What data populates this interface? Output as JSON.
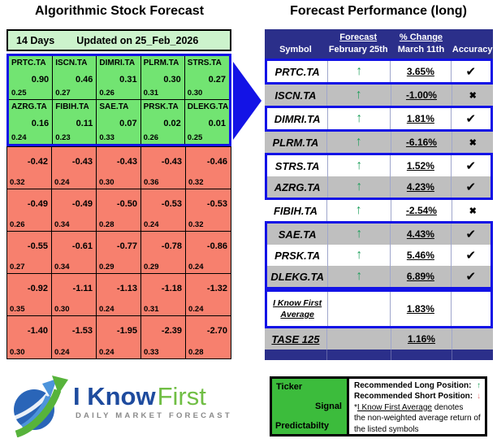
{
  "colors": {
    "navy_header": "#2B2F8A",
    "highlight_border_blue": "#1313E6",
    "green_cell": "#72E472",
    "pale_green_header": "#CCF3CC",
    "red_cell": "#F7806E",
    "gray_row": "#BFBFBF",
    "up_arrow_green": "#1FA05C",
    "down_arrow_red": "#E87C7C",
    "legend_green": "#3CBC3C",
    "logo_blue": "#1E4B9E",
    "logo_green": "#70BE44"
  },
  "left_panel": {
    "title": "Algorithmic Stock Forecast",
    "period": "14 Days",
    "updated": "Updated on 25_Feb_2026",
    "rows": [
      [
        {
          "ticker": "PRTC.TA",
          "signal": "0.90",
          "predictability": "0.25"
        },
        {
          "ticker": "ISCN.TA",
          "signal": "0.46",
          "predictability": "0.27"
        },
        {
          "ticker": "DIMRI.TA",
          "signal": "0.31",
          "predictability": "0.26"
        },
        {
          "ticker": "PLRM.TA",
          "signal": "0.30",
          "predictability": "0.31"
        },
        {
          "ticker": "STRS.TA",
          "signal": "0.27",
          "predictability": "0.30"
        }
      ],
      [
        {
          "ticker": "AZRG.TA",
          "signal": "0.16",
          "predictability": "0.24"
        },
        {
          "ticker": "FIBIH.TA",
          "signal": "0.11",
          "predictability": "0.23"
        },
        {
          "ticker": "SAE.TA",
          "signal": "0.07",
          "predictability": "0.33"
        },
        {
          "ticker": "PRSK.TA",
          "signal": "0.02",
          "predictability": "0.26"
        },
        {
          "ticker": "DLEKG.TA",
          "signal": "0.01",
          "predictability": "0.25"
        }
      ],
      [
        {
          "signal": "-0.42",
          "predictability": "0.32"
        },
        {
          "signal": "-0.43",
          "predictability": "0.24"
        },
        {
          "signal": "-0.43",
          "predictability": "0.30"
        },
        {
          "signal": "-0.43",
          "predictability": "0.36"
        },
        {
          "signal": "-0.46",
          "predictability": "0.32"
        }
      ],
      [
        {
          "signal": "-0.49",
          "predictability": "0.26"
        },
        {
          "signal": "-0.49",
          "predictability": "0.34"
        },
        {
          "signal": "-0.50",
          "predictability": "0.28"
        },
        {
          "signal": "-0.53",
          "predictability": "0.24"
        },
        {
          "signal": "-0.53",
          "predictability": "0.32"
        }
      ],
      [
        {
          "signal": "-0.55",
          "predictability": "0.27"
        },
        {
          "signal": "-0.61",
          "predictability": "0.34"
        },
        {
          "signal": "-0.77",
          "predictability": "0.29"
        },
        {
          "signal": "-0.78",
          "predictability": "0.29"
        },
        {
          "signal": "-0.86",
          "predictability": "0.24"
        }
      ],
      [
        {
          "signal": "-0.92",
          "predictability": "0.35"
        },
        {
          "signal": "-1.11",
          "predictability": "0.30"
        },
        {
          "signal": "-1.13",
          "predictability": "0.24"
        },
        {
          "signal": "-1.18",
          "predictability": "0.31"
        },
        {
          "signal": "-1.32",
          "predictability": "0.24"
        }
      ],
      [
        {
          "signal": "-1.40",
          "predictability": "0.30"
        },
        {
          "signal": "-1.53",
          "predictability": "0.24"
        },
        {
          "signal": "-1.95",
          "predictability": "0.24"
        },
        {
          "signal": "-2.39",
          "predictability": "0.33"
        },
        {
          "signal": "-2.70",
          "predictability": "0.28"
        }
      ]
    ]
  },
  "right_panel": {
    "title": "Forecast Performance (long)",
    "header": {
      "symbol": "Symbol",
      "forecast": "Forecast",
      "forecast_date": "February 25th",
      "change": "% Change",
      "change_date": "March 11th",
      "accuracy": "Accuracy"
    },
    "rows": [
      {
        "symbol": "PRTC.TA",
        "arrow": "↑",
        "change": "3.65%",
        "mark": "✔",
        "shade": "white",
        "type": "stock",
        "box_group": 1
      },
      {
        "symbol": "ISCN.TA",
        "arrow": "↑",
        "change": "-1.00%",
        "mark": "✖",
        "shade": "gray",
        "type": "stock",
        "box_group": 0
      },
      {
        "symbol": "DIMRI.TA",
        "arrow": "↑",
        "change": "1.81%",
        "mark": "✔",
        "shade": "white",
        "type": "stock",
        "box_group": 2
      },
      {
        "symbol": "PLRM.TA",
        "arrow": "↑",
        "change": "-6.16%",
        "mark": "✖",
        "shade": "gray",
        "type": "stock",
        "box_group": 0
      },
      {
        "symbol": "STRS.TA",
        "arrow": "↑",
        "change": "1.52%",
        "mark": "✔",
        "shade": "white",
        "type": "stock",
        "box_group": 3
      },
      {
        "symbol": "AZRG.TA",
        "arrow": "↑",
        "change": "4.23%",
        "mark": "✔",
        "shade": "gray",
        "type": "stock",
        "box_group": 3
      },
      {
        "symbol": "FIBIH.TA",
        "arrow": "↑",
        "change": "-2.54%",
        "mark": "✖",
        "shade": "white",
        "type": "stock",
        "box_group": 0
      },
      {
        "symbol": "SAE.TA",
        "arrow": "↑",
        "change": "4.43%",
        "mark": "✔",
        "shade": "gray",
        "type": "stock",
        "box_group": 4
      },
      {
        "symbol": "PRSK.TA",
        "arrow": "↑",
        "change": "5.46%",
        "mark": "✔",
        "shade": "white",
        "type": "stock",
        "box_group": 4
      },
      {
        "symbol": "DLEKG.TA",
        "arrow": "↑",
        "change": "6.89%",
        "mark": "✔",
        "shade": "gray",
        "type": "stock",
        "box_group": 4
      },
      {
        "symbol": "I Know First",
        "symbol_line2": "Average",
        "arrow": "",
        "change": "1.83%",
        "mark": "",
        "shade": "white",
        "type": "average",
        "box_group": 5
      },
      {
        "symbol": "TASE 125",
        "arrow": "",
        "change": "1.16%",
        "mark": "",
        "shade": "gray",
        "type": "index",
        "box_group": 0
      }
    ]
  },
  "legend": {
    "ticker_label": "Ticker",
    "signal_label": "Signal",
    "predictability_label": "Predictabilty",
    "long_label": "Recommended Long Position:",
    "long_arrow": "↑",
    "short_label": "Recommended Short Position:",
    "short_arrow": "↓",
    "note_star": "*",
    "note_underlined": "I Know First Average",
    "note_rest": " denotes",
    "note_line2": "the non-weighted average return of",
    "note_line3": "the listed symbols"
  },
  "logo": {
    "name_part1": "I Know",
    "name_part2": "First",
    "subtitle": "DAILY MARKET FORECAST"
  },
  "chart_data": [
    {
      "type": "table",
      "title": "Algorithmic Stock Forecast",
      "subtitle": "14 Days — Updated on 25_Feb_2026",
      "columns": [
        "ticker",
        "signal",
        "predictability"
      ],
      "rows": [
        [
          "PRTC.TA",
          0.9,
          0.25
        ],
        [
          "ISCN.TA",
          0.46,
          0.27
        ],
        [
          "DIMRI.TA",
          0.31,
          0.26
        ],
        [
          "PLRM.TA",
          0.3,
          0.31
        ],
        [
          "STRS.TA",
          0.27,
          0.3
        ],
        [
          "AZRG.TA",
          0.16,
          0.24
        ],
        [
          "FIBIH.TA",
          0.11,
          0.23
        ],
        [
          "SAE.TA",
          0.07,
          0.33
        ],
        [
          "PRSK.TA",
          0.02,
          0.26
        ],
        [
          "DLEKG.TA",
          0.01,
          0.25
        ],
        [
          null,
          -0.42,
          0.32
        ],
        [
          null,
          -0.43,
          0.24
        ],
        [
          null,
          -0.43,
          0.3
        ],
        [
          null,
          -0.43,
          0.36
        ],
        [
          null,
          -0.46,
          0.32
        ],
        [
          null,
          -0.49,
          0.26
        ],
        [
          null,
          -0.49,
          0.34
        ],
        [
          null,
          -0.5,
          0.28
        ],
        [
          null,
          -0.53,
          0.24
        ],
        [
          null,
          -0.53,
          0.32
        ],
        [
          null,
          -0.55,
          0.27
        ],
        [
          null,
          -0.61,
          0.34
        ],
        [
          null,
          -0.77,
          0.29
        ],
        [
          null,
          -0.78,
          0.29
        ],
        [
          null,
          -0.86,
          0.24
        ],
        [
          null,
          -0.92,
          0.35
        ],
        [
          null,
          -1.11,
          0.3
        ],
        [
          null,
          -1.13,
          0.24
        ],
        [
          null,
          -1.18,
          0.31
        ],
        [
          null,
          -1.32,
          0.24
        ],
        [
          null,
          -1.4,
          0.3
        ],
        [
          null,
          -1.53,
          0.24
        ],
        [
          null,
          -1.95,
          0.24
        ],
        [
          null,
          -2.39,
          0.33
        ],
        [
          null,
          -2.7,
          0.28
        ]
      ]
    },
    {
      "type": "table",
      "title": "Forecast Performance (long)",
      "columns": [
        "Symbol",
        "Forecast February 25th",
        "% Change March 11th",
        "Accuracy"
      ],
      "rows": [
        [
          "PRTC.TA",
          "up",
          "3.65%",
          "correct"
        ],
        [
          "ISCN.TA",
          "up",
          "-1.00%",
          "incorrect"
        ],
        [
          "DIMRI.TA",
          "up",
          "1.81%",
          "correct"
        ],
        [
          "PLRM.TA",
          "up",
          "-6.16%",
          "incorrect"
        ],
        [
          "STRS.TA",
          "up",
          "1.52%",
          "correct"
        ],
        [
          "AZRG.TA",
          "up",
          "4.23%",
          "correct"
        ],
        [
          "FIBIH.TA",
          "up",
          "-2.54%",
          "incorrect"
        ],
        [
          "SAE.TA",
          "up",
          "4.43%",
          "correct"
        ],
        [
          "PRSK.TA",
          "up",
          "5.46%",
          "correct"
        ],
        [
          "DLEKG.TA",
          "up",
          "6.89%",
          "correct"
        ],
        [
          "I Know First Average",
          "",
          "1.83%",
          ""
        ],
        [
          "TASE 125",
          "",
          "1.16%",
          ""
        ]
      ]
    }
  ]
}
